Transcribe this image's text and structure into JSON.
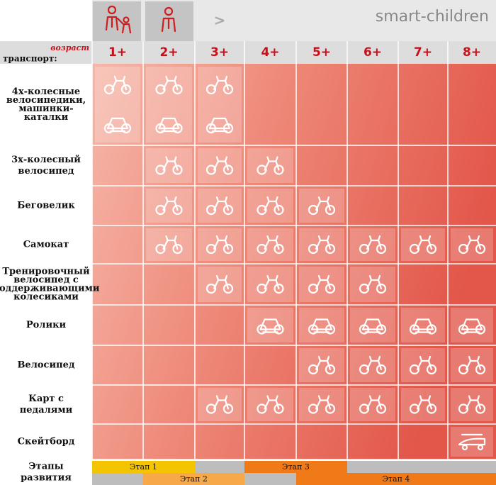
{
  "header": {
    "brand": "smart-children",
    "nav_arrow": ">"
  },
  "table": {
    "age_label": "возраст",
    "transport_label": "транспорт:",
    "ages": [
      "1+",
      "2+",
      "3+",
      "4+",
      "5+",
      "6+",
      "7+",
      "8+"
    ],
    "rows": [
      {
        "label": [
          "4х-колесные",
          "велосипедики,",
          "машинки-",
          "каталки"
        ],
        "available": [
          true,
          true,
          true,
          false,
          false,
          false,
          false,
          false
        ]
      },
      {
        "label": [
          "3х-колесный",
          "велосипед"
        ],
        "available": [
          false,
          true,
          true,
          true,
          false,
          false,
          false,
          false
        ]
      },
      {
        "label": [
          "Беговелик"
        ],
        "available": [
          false,
          true,
          true,
          true,
          true,
          false,
          false,
          false
        ]
      },
      {
        "label": [
          "Самокат"
        ],
        "available": [
          false,
          true,
          true,
          true,
          true,
          true,
          true,
          true
        ]
      },
      {
        "label": [
          "Тренировочный",
          "велосипед с",
          "поддерживающими",
          "колесиками"
        ],
        "available": [
          false,
          false,
          true,
          true,
          true,
          true,
          false,
          false
        ]
      },
      {
        "label": [
          "Ролики"
        ],
        "available": [
          false,
          false,
          false,
          true,
          true,
          true,
          true,
          true
        ]
      },
      {
        "label": [
          "Велосипед"
        ],
        "available": [
          false,
          false,
          false,
          false,
          true,
          true,
          true,
          true
        ]
      },
      {
        "label": [
          "Карт с",
          "педалями"
        ],
        "available": [
          false,
          false,
          true,
          true,
          true,
          true,
          true,
          true
        ]
      },
      {
        "label": [
          "Скейтборд"
        ],
        "available": [
          false,
          false,
          false,
          false,
          false,
          false,
          false,
          true
        ]
      }
    ]
  },
  "stages": {
    "label": [
      "Этапы",
      "развития"
    ],
    "items": [
      "Этап 1",
      "Этап 2",
      "Этап 3",
      "Этап 4"
    ]
  }
}
